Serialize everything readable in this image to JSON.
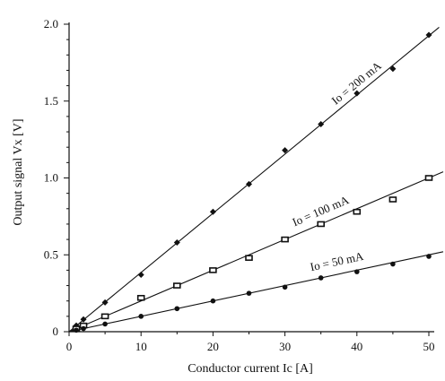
{
  "chart_data": {
    "type": "scatter",
    "title": "",
    "xlabel": "Conductor current Ic [A]",
    "ylabel": "Output signal Vx [V]",
    "xlim": [
      0,
      50
    ],
    "ylim": [
      0,
      2.0
    ],
    "x_ticks": [
      0,
      10,
      20,
      30,
      40,
      50
    ],
    "x_tick_labels": [
      "0",
      "10",
      "20",
      "30",
      "40",
      "50"
    ],
    "y_ticks": [
      0,
      0.5,
      1.0,
      1.5,
      2.0
    ],
    "y_tick_labels": [
      "0",
      "0.5",
      "1.0",
      "1.5",
      "2.0"
    ],
    "grid": false,
    "legend": "none",
    "series": [
      {
        "name": "Io = 200 mA",
        "marker": "diamond",
        "fit_slope": 0.0385,
        "x": [
          1,
          2,
          5,
          10,
          15,
          20,
          25,
          30,
          35,
          40,
          45,
          50
        ],
        "y": [
          0.04,
          0.08,
          0.19,
          0.37,
          0.58,
          0.78,
          0.96,
          1.18,
          1.35,
          1.55,
          1.71,
          1.93
        ]
      },
      {
        "name": "Io = 100 mA",
        "marker": "square",
        "fit_slope": 0.02,
        "x": [
          1,
          2,
          5,
          10,
          15,
          20,
          25,
          30,
          35,
          40,
          45,
          50
        ],
        "y": [
          0.02,
          0.04,
          0.1,
          0.22,
          0.3,
          0.4,
          0.48,
          0.6,
          0.7,
          0.78,
          0.86,
          1.0
        ]
      },
      {
        "name": "Io = 50 mA",
        "marker": "circle",
        "fit_slope": 0.01,
        "x": [
          1,
          2,
          5,
          10,
          15,
          20,
          25,
          30,
          35,
          40,
          45,
          50
        ],
        "y": [
          0.01,
          0.02,
          0.05,
          0.1,
          0.15,
          0.2,
          0.25,
          0.29,
          0.35,
          0.39,
          0.44,
          0.49
        ]
      }
    ]
  }
}
